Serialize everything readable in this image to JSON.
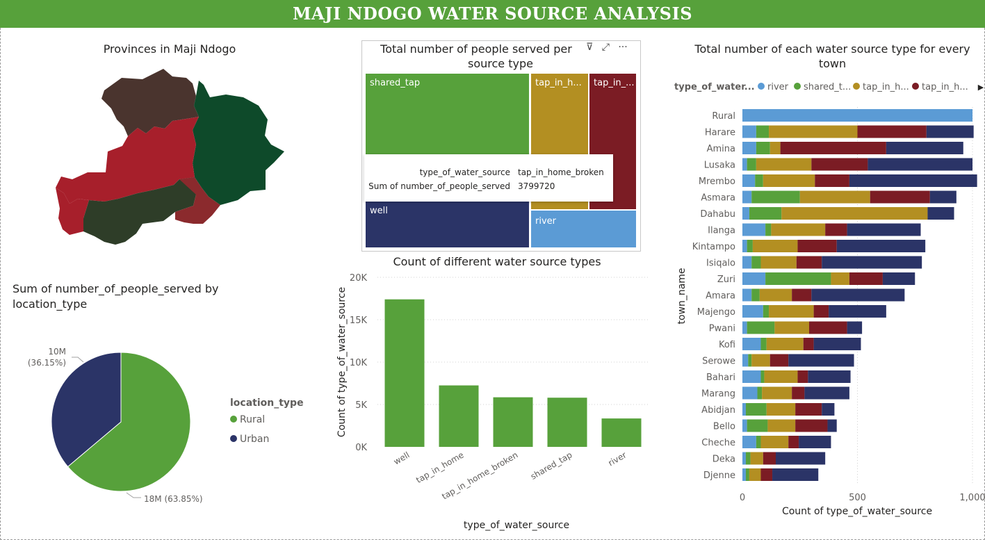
{
  "header": {
    "title": "MAJI NDOGO WATER SOURCE ANALYSIS"
  },
  "colors": {
    "header_bg": "#57a13b",
    "river": "#5b9bd5",
    "shared_tap": "#57a13b",
    "tap_in_home": "#b38f22",
    "tap_in_home_broken": "#7b1c24",
    "well": "#2b3467",
    "rural": "#57a13b",
    "urban": "#2b3467"
  },
  "map": {
    "title": "Provinces in Maji Ndogo",
    "province_colors": [
      "#4a342e",
      "#0e4a2a",
      "#a71f2b",
      "#2e3d28",
      "#8b2a2d"
    ]
  },
  "treemap": {
    "title_line1": "Total number of people served per",
    "title_line2": "source type",
    "icons": [
      "filter-icon",
      "focus-mode-icon",
      "more-options-icon"
    ],
    "icon_glyphs": [
      "⊽",
      "⤢",
      "···"
    ],
    "tiles": [
      "shared_tap",
      "tap_in_h...",
      "tap_in_...",
      "well",
      "river"
    ],
    "tooltip": {
      "k1": "type_of_water_source",
      "v1": "tap_in_home_broken",
      "k2": "Sum of number_of_people_served",
      "v2": "3799720"
    }
  },
  "pie": {
    "title_line1": "Sum of number_of_people_served by",
    "title_line2": "location_type",
    "legend_title": "location_type",
    "labels": {
      "urban": "10M",
      "urban_pct": "(36.15%)",
      "rural": "18M (63.85%)"
    }
  },
  "chart_data": [
    {
      "type": "pie",
      "title": "Sum of number_of_people_served by location_type",
      "legend_title": "location_type",
      "slices": [
        {
          "name": "Rural",
          "value": 63.85,
          "label": "18M (63.85%)"
        },
        {
          "name": "Urban",
          "value": 36.15,
          "label": "10M (36.15%)"
        }
      ]
    },
    {
      "type": "bar",
      "title": "Count of different water source types",
      "xlabel": "type_of_water_source",
      "ylabel": "Count of type_of_water_source",
      "categories": [
        "well",
        "tap_in_home",
        "tap_in_home_broken",
        "shared_tap",
        "river"
      ],
      "values": [
        17400,
        7250,
        5850,
        5800,
        3350
      ],
      "ylim": [
        0,
        20000
      ],
      "yticks": [
        0,
        5000,
        10000,
        15000,
        20000
      ],
      "yticklabels": [
        "0K",
        "5K",
        "10K",
        "15K",
        "20K"
      ]
    },
    {
      "type": "bar",
      "orientation": "horizontal",
      "stacked": true,
      "title": "Total number of each water source type for every town",
      "xlabel": "Count of type_of_water_source",
      "ylabel": "town_name",
      "legend_title": "type_of_water...",
      "legend_labels": [
        "river",
        "shared_t...",
        "tap_in_h...",
        "tap_in_h..."
      ],
      "xlim": [
        0,
        1000
      ],
      "xticks": [
        0,
        500,
        1000
      ],
      "xticklabels": [
        "0",
        "500",
        "1,000"
      ],
      "categories": [
        "Rural",
        "Harare",
        "Amina",
        "Lusaka",
        "Mrembo",
        "Asmara",
        "Dahabu",
        "Ilanga",
        "Kintampo",
        "Isiqalo",
        "Zuri",
        "Amara",
        "Majengo",
        "Pwani",
        "Kofi",
        "Serowe",
        "Bahari",
        "Marang",
        "Abidjan",
        "Bello",
        "Cheche",
        "Deka",
        "Djenne"
      ],
      "series": [
        {
          "name": "river",
          "values": [
            1000,
            60,
            60,
            20,
            55,
            40,
            30,
            100,
            20,
            40,
            100,
            40,
            90,
            20,
            80,
            25,
            80,
            65,
            15,
            20,
            60,
            15,
            15
          ]
        },
        {
          "name": "shared_tap",
          "values": [
            0,
            55,
            60,
            40,
            35,
            210,
            140,
            25,
            25,
            40,
            285,
            35,
            25,
            120,
            25,
            15,
            15,
            20,
            90,
            90,
            20,
            20,
            15
          ]
        },
        {
          "name": "tap_in_home",
          "values": [
            0,
            385,
            45,
            240,
            225,
            305,
            635,
            235,
            195,
            155,
            80,
            140,
            195,
            150,
            160,
            80,
            145,
            130,
            125,
            120,
            120,
            55,
            50
          ]
        },
        {
          "name": "tap_in_home_broken",
          "values": [
            0,
            300,
            460,
            245,
            150,
            260,
            0,
            95,
            170,
            110,
            145,
            85,
            65,
            165,
            45,
            80,
            45,
            55,
            115,
            140,
            45,
            55,
            50
          ]
        },
        {
          "name": "well",
          "values": [
            0,
            205,
            335,
            455,
            555,
            115,
            115,
            320,
            385,
            435,
            140,
            405,
            250,
            65,
            205,
            285,
            185,
            195,
            55,
            40,
            140,
            215,
            200
          ]
        }
      ]
    },
    {
      "type": "table",
      "title": "Total number of people served per source type",
      "note": "treemap",
      "rows": [
        {
          "name": "tap_in_home_broken",
          "value": 3799720
        }
      ]
    }
  ],
  "bar": {
    "title": "Count of different water source types"
  },
  "stacked": {
    "title_line1": "Total number of each water source type for every",
    "title_line2": "town",
    "scroll_glyph": "▶"
  }
}
